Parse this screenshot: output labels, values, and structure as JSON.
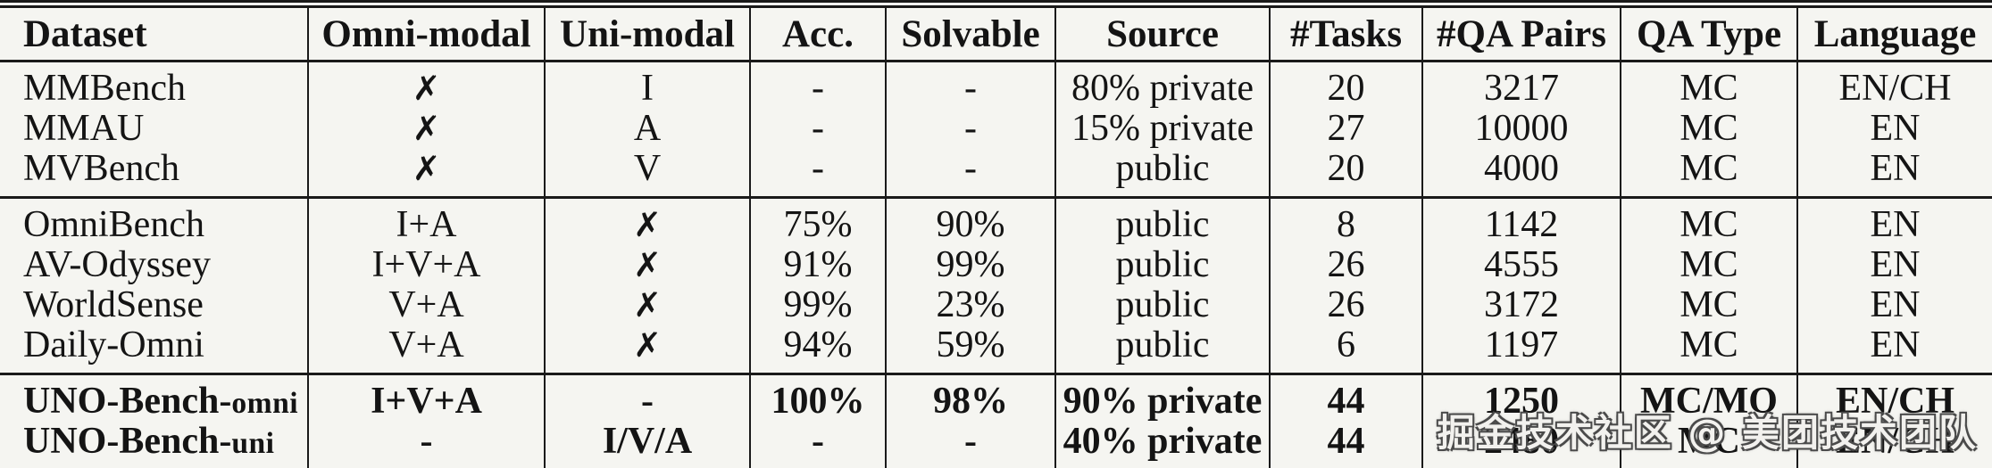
{
  "colors": {
    "bg": "#f5f5f1",
    "line": "#1a1a1a",
    "text": "#141414",
    "wm-fill": "#f2f1ee",
    "wm-outline": "#4a4a4a"
  },
  "icons": {
    "cross_label": "✗"
  },
  "table": {
    "columns": [
      {
        "label": "Dataset"
      },
      {
        "label": "Omni-modal"
      },
      {
        "label": "Uni-modal"
      },
      {
        "label": "Acc."
      },
      {
        "label": "Solvable"
      },
      {
        "label": "Source"
      },
      {
        "label": "#Tasks"
      },
      {
        "label": "#QA Pairs"
      },
      {
        "label": "QA Type"
      },
      {
        "label": "Language"
      }
    ],
    "sections": [
      {
        "bold": false,
        "rows": [
          [
            "MMBench",
            "✗",
            "I",
            "-",
            "-",
            "80% private",
            "20",
            "3217",
            "MC",
            "EN/CH"
          ],
          [
            "MMAU",
            "✗",
            "A",
            "-",
            "-",
            "15% private",
            "27",
            "10000",
            "MC",
            "EN"
          ],
          [
            "MVBench",
            "✗",
            "V",
            "-",
            "-",
            "public",
            "20",
            "4000",
            "MC",
            "EN"
          ]
        ]
      },
      {
        "bold": false,
        "rows": [
          [
            "OmniBench",
            "I+A",
            "✗",
            "75%",
            "90%",
            "public",
            "8",
            "1142",
            "MC",
            "EN"
          ],
          [
            "AV-Odyssey",
            "I+V+A",
            "✗",
            "91%",
            "99%",
            "public",
            "26",
            "4555",
            "MC",
            "EN"
          ],
          [
            "WorldSense",
            "V+A",
            "✗",
            "99%",
            "23%",
            "public",
            "26",
            "3172",
            "MC",
            "EN"
          ],
          [
            "Daily-Omni",
            "V+A",
            "✗",
            "94%",
            "59%",
            "public",
            "6",
            "1197",
            "MC",
            "EN"
          ]
        ]
      },
      {
        "bold": true,
        "rows": [
          [
            "UNO-Bench-omni",
            "I+V+A",
            "-",
            "100%",
            "98%",
            "90% private",
            "44",
            "1250",
            "MC/MO",
            "EN/CH"
          ],
          [
            "UNO-Bench-uni",
            "-",
            "I/V/A",
            "-",
            "-",
            "40% private",
            "44",
            "2480",
            "MC",
            "EN/CH"
          ]
        ]
      }
    ]
  },
  "watermark": {
    "text": "掘金技术社区 @ 美团技术团队"
  }
}
